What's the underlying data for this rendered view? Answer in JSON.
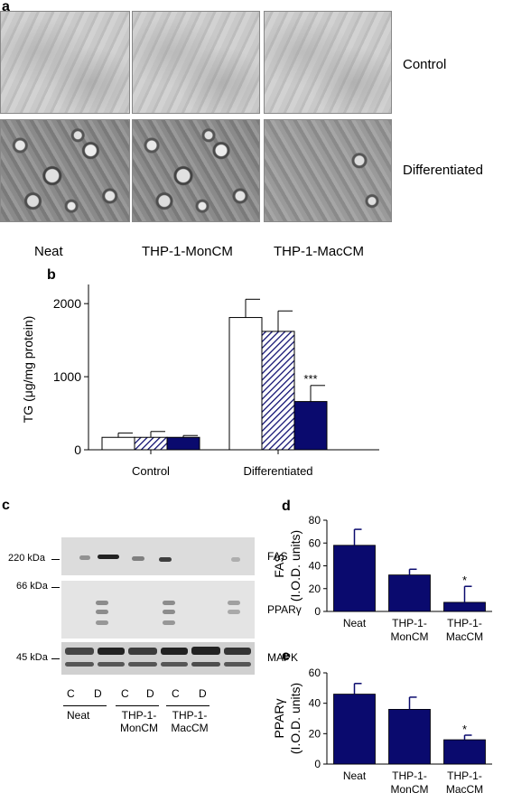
{
  "panel_a": {
    "letter": "a",
    "row_labels": [
      "Control",
      "Differentiated"
    ],
    "column_labels": [
      "Neat",
      "THP-1-MonCM",
      "THP-1-MacCM"
    ]
  },
  "panel_b": {
    "letter": "b",
    "chart_data": {
      "type": "bar",
      "ylabel": "TG (μg/mg protein)",
      "ylim": [
        0,
        2000
      ],
      "yticks": [
        "0",
        "1000",
        "2000"
      ],
      "groups": [
        "Control",
        "Differentiated"
      ],
      "series": [
        {
          "values": [
            170,
            1810
          ],
          "errors": [
            60,
            250
          ],
          "fill": "#ffffff"
        },
        {
          "values": [
            170,
            1620
          ],
          "errors": [
            80,
            280
          ],
          "fill": "hatch"
        },
        {
          "values": [
            170,
            660
          ],
          "errors": [
            25,
            220
          ],
          "fill": "#0a0a6e"
        }
      ],
      "annotations": [
        {
          "group": 1,
          "series": 2,
          "text": "***"
        }
      ]
    }
  },
  "panel_c": {
    "letter": "c",
    "blots": [
      {
        "marker": "220 kDa",
        "label": "FAS"
      },
      {
        "marker": "66 kDa",
        "label": "PPARγ"
      },
      {
        "marker": "45 kDa",
        "label": "MAPK"
      }
    ],
    "lanes": [
      "C",
      "D",
      "C",
      "D",
      "C",
      "D"
    ],
    "groups": [
      "Neat",
      "THP-1-",
      "THP-1-"
    ],
    "groups_line2": [
      "",
      "MonCM",
      "MacCM"
    ]
  },
  "panel_d": {
    "letter": "d",
    "chart_data": {
      "type": "bar",
      "ylabel_line1": "FAS",
      "ylabel_line2": "(I.O.D. units)",
      "ylim": [
        0,
        80
      ],
      "yticks": [
        "0",
        "20",
        "40",
        "60",
        "80"
      ],
      "categories": [
        "Neat",
        "THP-1-",
        "THP-1-"
      ],
      "categories_line2": [
        "",
        "MonCM",
        "MacCM"
      ],
      "values": [
        58,
        32,
        8
      ],
      "errors": [
        14,
        5,
        14
      ],
      "annotations": [
        {
          "index": 2,
          "text": "*"
        }
      ],
      "color": "#0a0a6e"
    }
  },
  "panel_e": {
    "letter": "e",
    "chart_data": {
      "type": "bar",
      "ylabel_line1": "PPARγ",
      "ylabel_line2": "(I.O.D. units)",
      "ylim": [
        0,
        60
      ],
      "yticks": [
        "0",
        "20",
        "40",
        "60"
      ],
      "categories": [
        "Neat",
        "THP-1-",
        "THP-1-"
      ],
      "categories_line2": [
        "",
        "MonCM",
        "MacCM"
      ],
      "values": [
        46,
        36,
        16
      ],
      "errors": [
        7,
        8,
        3
      ],
      "annotations": [
        {
          "index": 2,
          "text": "*"
        }
      ],
      "color": "#0a0a6e"
    }
  }
}
